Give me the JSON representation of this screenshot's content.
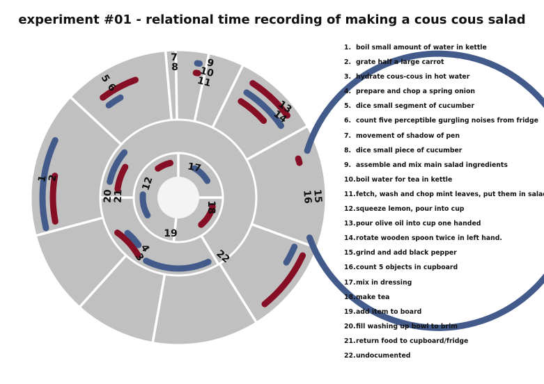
{
  "title": "experiment #01 - relational time recording of making a cous cous salad",
  "colors": {
    "background": "#ffffff",
    "ring_fill": "#c0c0c0",
    "blue": "#435b8b",
    "red": "#860f26",
    "separator": "#ffffff"
  },
  "legend": [
    {
      "n": "1.",
      "text": "boil small amount of water in kettle"
    },
    {
      "n": "2.",
      "text": "grate half a large carrot"
    },
    {
      "n": "3.",
      "text": "hydrate cous-cous in hot water"
    },
    {
      "n": "4.",
      "text": "prepare and chop a spring onion"
    },
    {
      "n": "5.",
      "text": "dice small segment of cucumber"
    },
    {
      "n": "6.",
      "text": "count five perceptible gurgling noises from fridge"
    },
    {
      "n": "7.",
      "text": "movement of shadow of pen"
    },
    {
      "n": "8.",
      "text": "dice small piece of cucumber"
    },
    {
      "n": "9.",
      "text": "assemble and mix main salad ingredients"
    },
    {
      "n": "10.",
      "text": "boil water for tea in kettle"
    },
    {
      "n": "11.",
      "text": "fetch, wash and chop mint leaves, put them in salad"
    },
    {
      "n": "12.",
      "text": "squeeze lemon, pour into cup"
    },
    {
      "n": "13.",
      "text": "pour olive oil into cup one handed"
    },
    {
      "n": "14.",
      "text": "rotate wooden spoon twice in left hand."
    },
    {
      "n": "15.",
      "text": "grind and add black pepper"
    },
    {
      "n": "16.",
      "text": "count 5 objects in cupboard"
    },
    {
      "n": "17.",
      "text": "mix in dressing"
    },
    {
      "n": "18.",
      "text": "make tea"
    },
    {
      "n": "19.",
      "text": "add item to board"
    },
    {
      "n": "20.",
      "text": "fill washing up bowl to brim"
    },
    {
      "n": "21.",
      "text": "return food to cupboard/fridge"
    },
    {
      "n": "22.",
      "text": "undocumented"
    }
  ],
  "task_labels": [
    "1",
    "2",
    "3",
    "4",
    "5",
    "6",
    "7",
    "8",
    "9",
    "10",
    "11",
    "12",
    "13",
    "14",
    "15",
    "16",
    "17",
    "18",
    "19",
    "20",
    "21",
    "22"
  ]
}
